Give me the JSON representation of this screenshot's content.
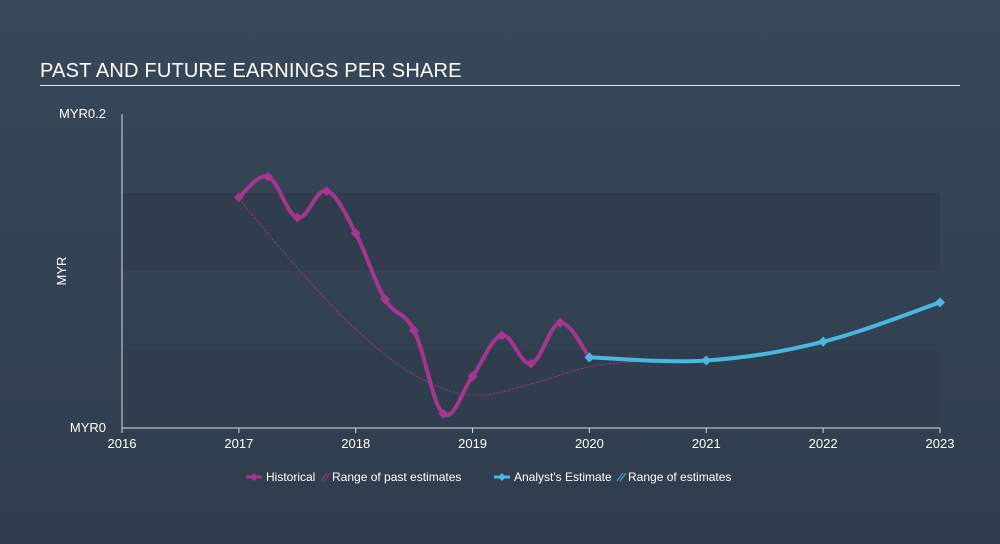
{
  "title": "PAST AND FUTURE EARNINGS PER SHARE",
  "colors": {
    "historical": "#a5358f",
    "estimate": "#4ab7e1",
    "band": "#2f3d4c"
  },
  "chart_data": {
    "type": "line",
    "ylabel": "MYR",
    "y_tick_labels": [
      "MYR0.2",
      "MYR0"
    ],
    "ylim": [
      0,
      0.2
    ],
    "xlim": [
      2016,
      2023
    ],
    "x_tick_labels": [
      "2016",
      "2017",
      "2018",
      "2019",
      "2020",
      "2021",
      "2022",
      "2023"
    ],
    "grid": false,
    "legend_position": "bottom",
    "series": [
      {
        "name": "Historical",
        "x": [
          2017.0,
          2017.25,
          2017.5,
          2017.75,
          2018.0,
          2018.25,
          2018.5,
          2018.75,
          2019.0,
          2019.25,
          2019.5,
          2019.75,
          2020.0
        ],
        "values": [
          0.147,
          0.16,
          0.134,
          0.151,
          0.124,
          0.082,
          0.062,
          0.009,
          0.033,
          0.059,
          0.041,
          0.067,
          0.045
        ]
      },
      {
        "name": "Range of past estimates",
        "x": [
          2017.0,
          2017.5,
          2018.0,
          2018.5,
          2019.0,
          2019.5,
          2020.0,
          2020.5
        ],
        "values": [
          0.146,
          0.102,
          0.063,
          0.034,
          0.021,
          0.028,
          0.039,
          0.043
        ]
      },
      {
        "name": "Analyst's Estimate",
        "x": [
          2020.0,
          2021.0,
          2022.0,
          2023.0
        ],
        "values": [
          0.045,
          0.043,
          0.055,
          0.08
        ]
      }
    ],
    "legend": [
      "Historical",
      "Range of past estimates",
      "Analyst's Estimate",
      "Range of estimates"
    ]
  }
}
